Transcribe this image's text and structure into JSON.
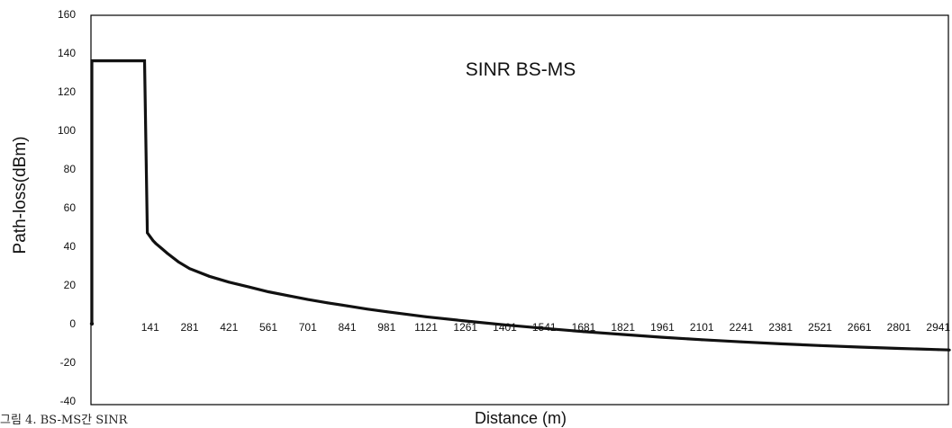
{
  "chart_data": {
    "type": "line",
    "title": "SINR BS-MS",
    "xlabel": "Distance (m)",
    "ylabel": "Path-loss(dBm)",
    "ylim": [
      -40,
      160
    ],
    "yticks": [
      "160",
      "140",
      "120",
      "100",
      "80",
      "60",
      "40",
      "20",
      "0",
      "-20",
      "-40"
    ],
    "xticks": [
      "141",
      "281",
      "421",
      "561",
      "701",
      "841",
      "981",
      "1121",
      "1261",
      "1401",
      "1541",
      "1681",
      "1821",
      "1961",
      "2101",
      "2241",
      "2381",
      "2521",
      "2661",
      "2801",
      "2941"
    ],
    "xlim": [
      1,
      2981
    ],
    "grid": false,
    "legend": "none",
    "series": [
      {
        "x": [
          1,
          1,
          121,
          121,
          131,
          141,
          151,
          161,
          181,
          201,
          241,
          281,
          351,
          421,
          491,
          561,
          631,
          701,
          771,
          841,
          911,
          981,
          1121,
          1261,
          1401,
          1541,
          1681,
          1821,
          1961,
          2101,
          2241,
          2381,
          2521,
          2661,
          2801,
          2941,
          2981
        ],
        "y": [
          0,
          136,
          136,
          136,
          47,
          45,
          43,
          41.5,
          39,
          36.5,
          32,
          28.5,
          24.5,
          21.5,
          19,
          16.5,
          14.5,
          12.5,
          10.8,
          9.2,
          7.6,
          6.2,
          3.6,
          1.4,
          -0.6,
          -2.4,
          -4.1,
          -5.6,
          -7.0,
          -8.3,
          -9.4,
          -10.4,
          -11.3,
          -12.1,
          -12.8,
          -13.4,
          -13.6
        ]
      }
    ]
  },
  "caption": "그림 4. BS-MS간 SINR"
}
